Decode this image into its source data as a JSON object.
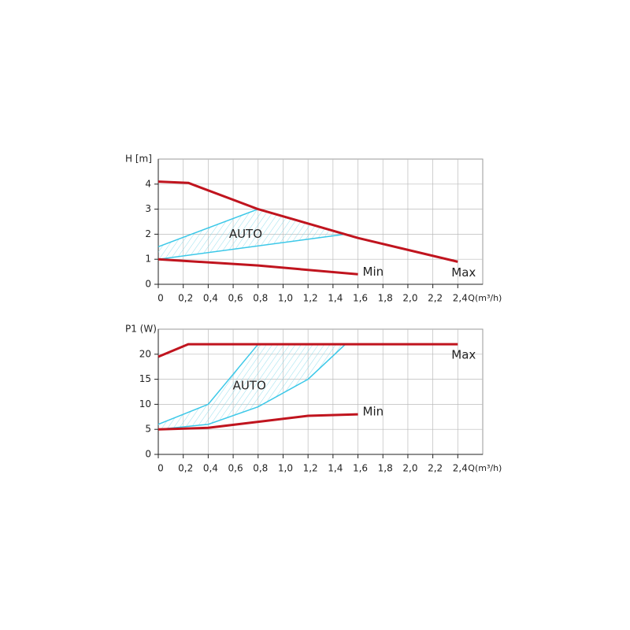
{
  "chart_data": [
    {
      "type": "line",
      "y_label": "H [m]",
      "x_label": "Q(m³/h)",
      "xlim": [
        0,
        2.6
      ],
      "ylim": [
        0,
        5
      ],
      "xticks": [
        0,
        {
          "value": 0.2,
          "label": "0,2"
        },
        {
          "value": 0.4,
          "label": "0,4"
        },
        {
          "value": 0.6,
          "label": "0,6"
        },
        {
          "value": 0.8,
          "label": "0,8"
        },
        {
          "value": 1.0,
          "label": "1,0"
        },
        {
          "value": 1.2,
          "label": "1,2"
        },
        {
          "value": 1.4,
          "label": "1,4"
        },
        {
          "value": 1.6,
          "label": "1,6"
        },
        {
          "value": 1.8,
          "label": "1,8"
        },
        {
          "value": 2.0,
          "label": "2,0"
        },
        {
          "value": 2.2,
          "label": "2,2"
        },
        {
          "value": 2.4,
          "label": "2,4"
        }
      ],
      "yticks": [
        0,
        1,
        2,
        3,
        4
      ],
      "grid": true,
      "series": [
        {
          "name": "Max",
          "color": "#c0141e",
          "x": [
            0,
            0.24,
            0.8,
            1.6,
            2.4
          ],
          "values": [
            4.1,
            4.05,
            3.0,
            1.85,
            0.9
          ]
        },
        {
          "name": "Min",
          "color": "#c0141e",
          "x": [
            0,
            0.8,
            1.6
          ],
          "values": [
            1.0,
            0.75,
            0.4
          ]
        }
      ],
      "auto_area": {
        "label": "AUTO",
        "color": "#3cc8e8",
        "upper": {
          "x": [
            0,
            0.8,
            1.5
          ],
          "values": [
            1.5,
            3.0,
            2.0
          ]
        },
        "lower": {
          "x": [
            0,
            1.5
          ],
          "values": [
            1.0,
            2.0
          ]
        }
      }
    },
    {
      "type": "line",
      "y_label": "P1 (W)",
      "x_label": "Q(m³/h)",
      "xlim": [
        0,
        2.6
      ],
      "ylim": [
        0,
        25
      ],
      "xticks": [
        0,
        {
          "value": 0.2,
          "label": "0,2"
        },
        {
          "value": 0.4,
          "label": "0,4"
        },
        {
          "value": 0.6,
          "label": "0,6"
        },
        {
          "value": 0.8,
          "label": "0,8"
        },
        {
          "value": 1.0,
          "label": "1,0"
        },
        {
          "value": 1.2,
          "label": "1,2"
        },
        {
          "value": 1.4,
          "label": "1,4"
        },
        {
          "value": 1.6,
          "label": "1,6"
        },
        {
          "value": 1.8,
          "label": "1,8"
        },
        {
          "value": 2.0,
          "label": "2,0"
        },
        {
          "value": 2.2,
          "label": "2,2"
        },
        {
          "value": 2.4,
          "label": "2,4"
        }
      ],
      "yticks": [
        0,
        5,
        10,
        15,
        20
      ],
      "grid": true,
      "series": [
        {
          "name": "Max",
          "color": "#c0141e",
          "x": [
            0,
            0.24,
            2.4
          ],
          "values": [
            19.5,
            22,
            22
          ]
        },
        {
          "name": "Min",
          "color": "#c0141e",
          "x": [
            0,
            0.4,
            0.8,
            1.2,
            1.6
          ],
          "values": [
            5,
            5.3,
            6.5,
            7.7,
            8
          ]
        }
      ],
      "auto_area": {
        "label": "AUTO",
        "color": "#3cc8e8",
        "upper": {
          "x": [
            0,
            0.4,
            0.8,
            1.5
          ],
          "values": [
            6,
            10,
            22,
            22
          ]
        },
        "lower": {
          "x": [
            0,
            0.4,
            0.8,
            1.2,
            1.5
          ],
          "values": [
            5,
            6,
            9.5,
            15,
            22
          ]
        }
      }
    }
  ]
}
